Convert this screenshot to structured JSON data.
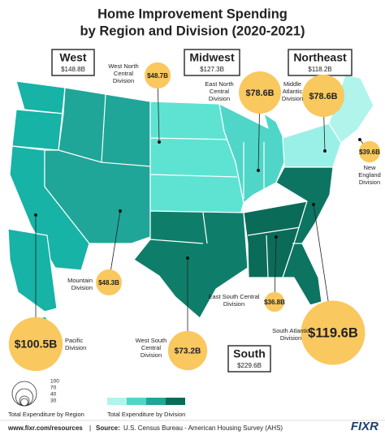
{
  "title": [
    "Home Improvement Spending",
    "by Region and Division (2020-2021)"
  ],
  "regions": [
    {
      "name": "West",
      "total": "$148.8B"
    },
    {
      "name": "Midwest",
      "total": "$127.3B"
    },
    {
      "name": "Northeast",
      "total": "$118.2B"
    },
    {
      "name": "South",
      "total": "$229.6B"
    }
  ],
  "divisions": [
    {
      "lines": [
        "Pacific",
        "Division"
      ],
      "value": 100.5,
      "label": "$100.5B"
    },
    {
      "lines": [
        "Mountain",
        "Division"
      ],
      "value": 48.3,
      "label": "$48.3B"
    },
    {
      "lines": [
        "West North",
        "Central",
        "Division"
      ],
      "value": 48.7,
      "label": "$48.7B"
    },
    {
      "lines": [
        "East North",
        "Central",
        "Division"
      ],
      "value": 78.6,
      "label": "$78.6B"
    },
    {
      "lines": [
        "Middle",
        "Atlantic",
        "Division"
      ],
      "value": 78.6,
      "label": "$78.6B"
    },
    {
      "lines": [
        "New",
        "England",
        "Division"
      ],
      "value": 39.6,
      "label": "$39.6B"
    },
    {
      "lines": [
        "West South",
        "Central",
        "Division"
      ],
      "value": 73.2,
      "label": "$73.2B"
    },
    {
      "lines": [
        "East South Central",
        "Division"
      ],
      "value": 36.8,
      "label": "$36.8B"
    },
    {
      "lines": [
        "South Atlantic",
        "Division"
      ],
      "value": 119.6,
      "label": "$119.6B"
    }
  ],
  "legend": {
    "region_title": "Total Expenditure by Region",
    "sizes": [
      100,
      70,
      40,
      30
    ],
    "division_title": "Total Expenditure by Division"
  },
  "footer": {
    "url": "www.fixr.com/resources",
    "separator": "|",
    "source_label": "Source:",
    "source": "U.S. Census Bureau - American Housing Survey (AHS)",
    "logo": "FIXR"
  }
}
